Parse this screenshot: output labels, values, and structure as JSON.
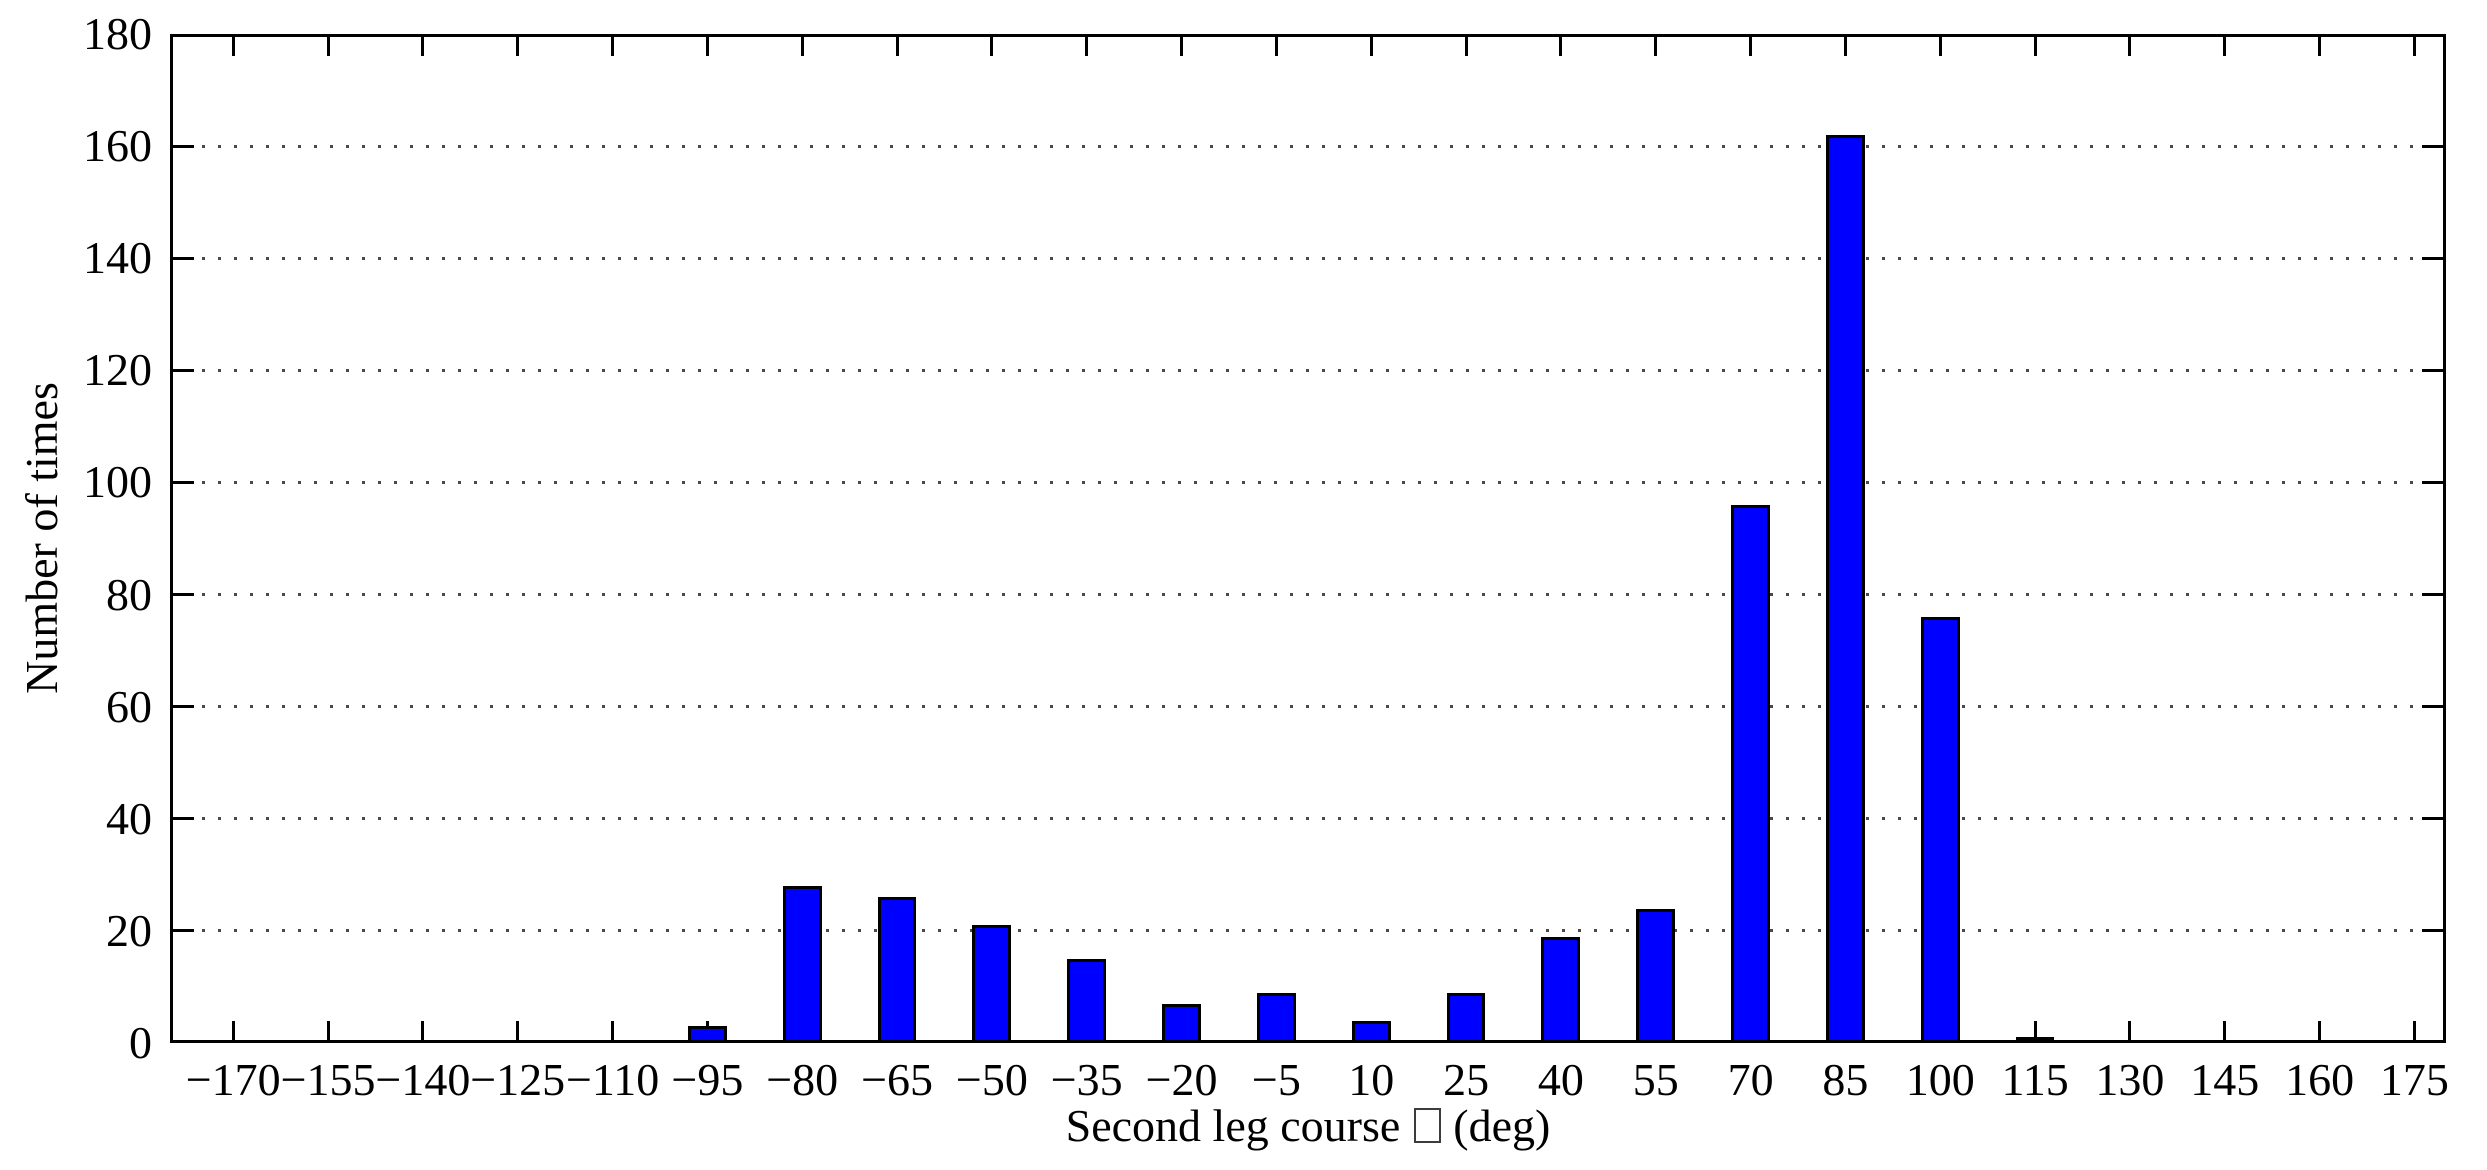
{
  "figure": {
    "background_color": "#ffffff",
    "axis_color": "#000000",
    "grid_style": "dotted",
    "grid_color": "#4a4a4a"
  },
  "chart_data": {
    "type": "bar",
    "title": "",
    "ylabel": "Number of times",
    "xlabel_prefix": "Second leg course",
    "xlabel_missing_glyph": "□",
    "xlabel_suffix": "(deg)",
    "xlabel_full": "Second leg course □ (deg)",
    "x": [
      -170,
      -155,
      -140,
      -125,
      -110,
      -95,
      -80,
      -65,
      -50,
      -35,
      -20,
      -5,
      10,
      25,
      40,
      55,
      70,
      85,
      100,
      115,
      130,
      145,
      160,
      175
    ],
    "x_tick_labels": [
      "−170",
      "−155",
      "−140",
      "−125",
      "−110",
      "−95",
      "−80",
      "−65",
      "−50",
      "−35",
      "−20",
      "−5",
      "10",
      "25",
      "40",
      "55",
      "70",
      "85",
      "100",
      "115",
      "130",
      "145",
      "160",
      "175"
    ],
    "values": [
      0,
      0,
      0,
      0,
      0,
      3,
      28,
      26,
      21,
      15,
      7,
      9,
      4,
      9,
      19,
      24,
      96,
      162,
      76,
      1,
      0,
      0,
      0,
      0
    ],
    "bin_width": 15,
    "bar_width_fraction": 0.41,
    "xlim": [
      -180,
      180
    ],
    "ylim": [
      0,
      180
    ],
    "yticks": [
      0,
      20,
      40,
      60,
      80,
      100,
      120,
      140,
      160,
      180
    ],
    "grid": "horizontal dotted lines at y = 20 through 160",
    "legend": null,
    "bar_color": "#0000ff",
    "bar_edge_color": "#000000"
  }
}
